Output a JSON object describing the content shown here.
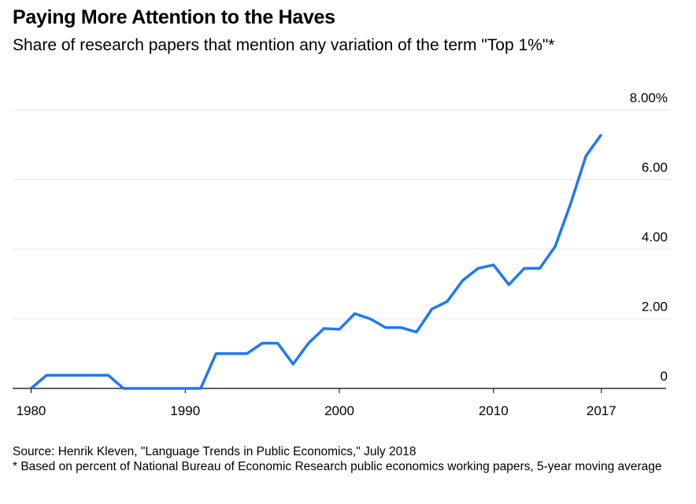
{
  "chart_data": {
    "type": "line",
    "title": "Paying More Attention to the Haves",
    "subtitle": "Share of research papers that mention any variation of the term \"Top 1%\"*",
    "xlabel": "",
    "ylabel": "",
    "xlim": [
      1978.8,
      2021.2
    ],
    "ylim": [
      0,
      8
    ],
    "grid": true,
    "y_ticks": [
      0,
      2,
      4,
      6,
      8
    ],
    "y_tick_labels": [
      "0",
      "2.00",
      "4.00",
      "6.00",
      "8.00%"
    ],
    "x_ticks": [
      1980,
      1990,
      2000,
      2010,
      2017
    ],
    "x_tick_labels": [
      "1980",
      "1990",
      "2000",
      "2010",
      "2017"
    ],
    "series": [
      {
        "name": "Share of papers mentioning Top 1%",
        "color": "#1f78f5",
        "x": [
          1980,
          1981,
          1982,
          1983,
          1984,
          1985,
          1986,
          1987,
          1988,
          1989,
          1990,
          1991,
          1992,
          1993,
          1994,
          1995,
          1996,
          1997,
          1998,
          1999,
          2000,
          2001,
          2002,
          2003,
          2004,
          2005,
          2006,
          2007,
          2008,
          2009,
          2010,
          2011,
          2012,
          2013,
          2014,
          2015,
          2016,
          2017
        ],
        "values": [
          0,
          0.38,
          0.38,
          0.38,
          0.38,
          0.38,
          0,
          0,
          0,
          0,
          0,
          0,
          1.0,
          1.0,
          1.0,
          1.3,
          1.3,
          0.7,
          1.3,
          1.72,
          1.7,
          2.15,
          2.0,
          1.75,
          1.75,
          1.62,
          2.28,
          2.5,
          3.1,
          3.45,
          3.55,
          2.98,
          3.45,
          3.45,
          4.08,
          5.3,
          6.68,
          7.3
        ]
      }
    ]
  },
  "footer": {
    "source": "Source: Henrik Kleven, \"Language Trends in Public Economics,\" July 2018",
    "note": "* Based on percent of National Bureau of Economic Research public economics working papers, 5-year moving average"
  }
}
